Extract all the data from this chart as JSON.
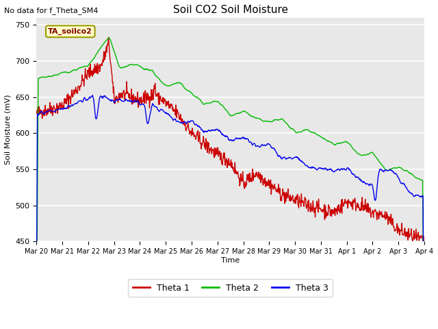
{
  "title": "Soil CO2 Soil Moisture",
  "subtitle": "No data for f_Theta_SM4",
  "ylabel": "Soil Moisture (mV)",
  "xlabel": "Time",
  "annotation": "TA_soilco2",
  "ylim": [
    450,
    760
  ],
  "yticks": [
    450,
    500,
    550,
    600,
    650,
    700,
    750
  ],
  "bg_color": "#e8e8e8",
  "grid_color": "white",
  "theta1_color": "#cc0000",
  "theta2_color": "#00bb00",
  "theta3_color": "#0000ee",
  "legend_labels": [
    "Theta 1",
    "Theta 2",
    "Theta 3"
  ],
  "x_tick_labels": [
    "Mar 20",
    "Mar 21",
    "Mar 22",
    "Mar 23",
    "Mar 24",
    "Mar 25",
    "Mar 26",
    "Mar 27",
    "Mar 28",
    "Mar 29",
    "Mar 30",
    "Mar 31",
    "Apr 1",
    "Apr 2",
    "Apr 3",
    "Apr 4"
  ],
  "num_points": 900,
  "figsize": [
    6.4,
    4.8
  ],
  "dpi": 100
}
